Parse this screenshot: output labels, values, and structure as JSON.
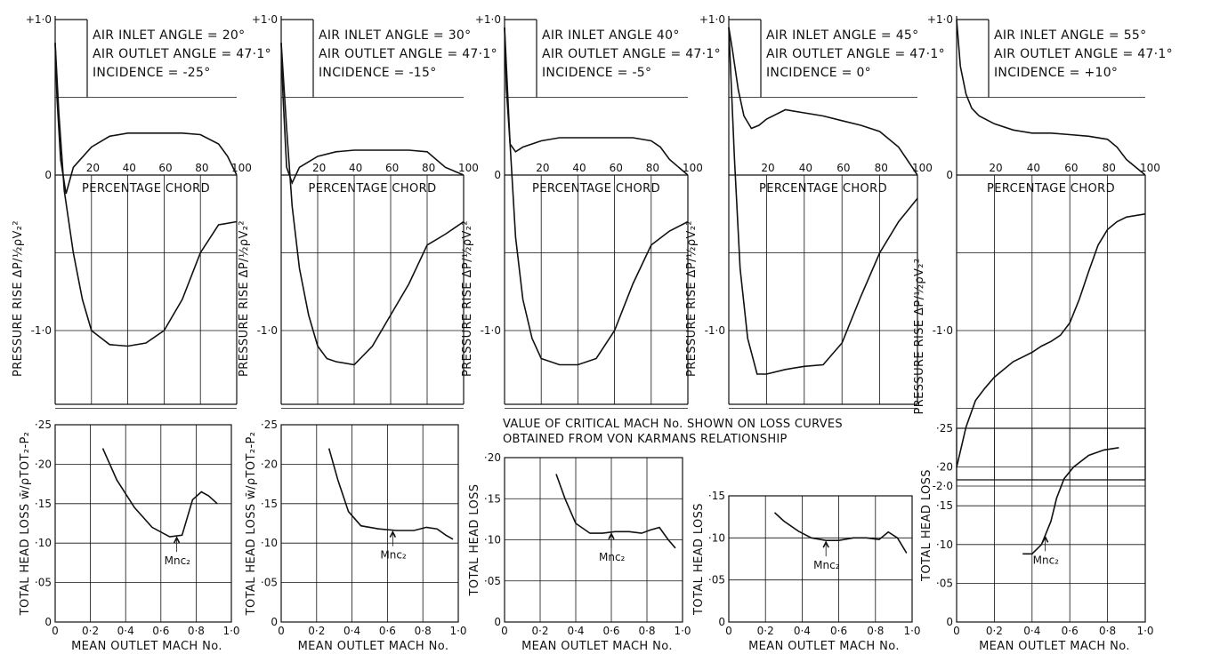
{
  "note_lines": [
    "VALUE OF CRITICAL MACH No. SHOWN ON LOSS CURVES",
    "OBTAINED FROM VON KARMANS RELATIONSHIP"
  ],
  "chart_data": [
    {
      "type": "line",
      "annotation": [
        "AIR INLET ANGLE = 20°",
        "AIR OUTLET ANGLE = 47·1°",
        "INCIDENCE = -25°"
      ],
      "pressure": {
        "xlabel": "PERCENTAGE CHORD",
        "ylabel": "PRESSURE RISE ΔP/½ρV₂²",
        "xticks": [
          "20",
          "40",
          "60",
          "80",
          "100"
        ],
        "yticks": [
          "+1·0",
          "0",
          "-1·0"
        ],
        "xlim": [
          0,
          100
        ],
        "ylim": [
          -1.5,
          1.0
        ],
        "series": [
          {
            "x": [
              0,
              1,
              3,
              6,
              10,
              20,
              30,
              40,
              50,
              60,
              70,
              80,
              90,
              95,
              100
            ],
            "y": [
              0.85,
              0.5,
              0.1,
              -0.12,
              0.05,
              0.18,
              0.25,
              0.27,
              0.27,
              0.27,
              0.27,
              0.26,
              0.2,
              0.12,
              0.0
            ]
          },
          {
            "x": [
              0,
              2,
              5,
              10,
              15,
              20,
              30,
              40,
              50,
              60,
              70,
              80,
              90,
              100
            ],
            "y": [
              0.85,
              0.4,
              -0.1,
              -0.5,
              -0.8,
              -1.0,
              -1.09,
              -1.1,
              -1.08,
              -1.0,
              -0.8,
              -0.5,
              -0.32,
              -0.3
            ]
          }
        ]
      },
      "loss": {
        "xlabel": "MEAN OUTLET MACH No.",
        "ylabel": "TOTAL HEAD LOSS w̄/ρTOT₂-P₂",
        "xticks": [
          "0",
          "0·2",
          "0·4",
          "0·6",
          "0·8",
          "1·0"
        ],
        "yticks": [
          "0",
          "·05",
          "·10",
          "·15",
          "·20",
          "·25"
        ],
        "xlim": [
          0,
          1.0
        ],
        "ylim": [
          0,
          0.25
        ],
        "mcrit_label": "Mnc₂",
        "mcrit_x": 0.69,
        "series": [
          {
            "x": [
              0.27,
              0.35,
              0.45,
              0.55,
              0.65,
              0.72,
              0.78,
              0.83,
              0.87,
              0.92
            ],
            "y": [
              0.22,
              0.18,
              0.145,
              0.12,
              0.108,
              0.11,
              0.155,
              0.165,
              0.16,
              0.15
            ]
          }
        ]
      }
    },
    {
      "type": "line",
      "annotation": [
        "AIR INLET ANGLE = 30°",
        "AIR OUTLET ANGLE = 47·1°",
        "INCIDENCE = -15°"
      ],
      "pressure": {
        "xlabel": "PERCENTAGE CHORD",
        "ylabel": "PRESSURE RISE ΔP/½ρV₂²",
        "xticks": [
          "20",
          "40",
          "60",
          "80",
          "100"
        ],
        "yticks": [
          "+1·0",
          "-1·0"
        ],
        "xlim": [
          0,
          100
        ],
        "ylim": [
          -1.5,
          1.0
        ],
        "series": [
          {
            "x": [
              0,
              1,
              3,
              6,
              10,
              20,
              30,
              40,
              50,
              60,
              70,
              80,
              90,
              100
            ],
            "y": [
              0.85,
              0.5,
              0.05,
              -0.05,
              0.05,
              0.12,
              0.15,
              0.16,
              0.16,
              0.16,
              0.16,
              0.15,
              0.05,
              0.0
            ]
          },
          {
            "x": [
              0,
              3,
              6,
              10,
              15,
              20,
              25,
              30,
              40,
              50,
              60,
              70,
              80,
              90,
              100
            ],
            "y": [
              0.85,
              0.3,
              -0.2,
              -0.6,
              -0.9,
              -1.1,
              -1.18,
              -1.2,
              -1.22,
              -1.1,
              -0.9,
              -0.7,
              -0.45,
              -0.38,
              -0.3
            ]
          }
        ]
      },
      "loss": {
        "xlabel": "MEAN OUTLET MACH No.",
        "ylabel": "TOTAL HEAD LOSS w̄/ρTOT₂-P₂",
        "xticks": [
          "0",
          "0·2",
          "0·4",
          "0·6",
          "0·8",
          "1·0"
        ],
        "yticks": [
          "0",
          "·05",
          "·10",
          "·15",
          "·20",
          "·25"
        ],
        "xlim": [
          0,
          1.0
        ],
        "ylim": [
          0,
          0.25
        ],
        "mcrit_label": "Mnc₂",
        "mcrit_x": 0.63,
        "series": [
          {
            "x": [
              0.27,
              0.32,
              0.38,
              0.45,
              0.55,
              0.65,
              0.75,
              0.82,
              0.88,
              0.93,
              0.97
            ],
            "y": [
              0.22,
              0.18,
              0.14,
              0.122,
              0.118,
              0.116,
              0.116,
              0.12,
              0.118,
              0.11,
              0.105
            ]
          }
        ]
      }
    },
    {
      "type": "line",
      "annotation": [
        "AIR INLET ANGLE 40°",
        "AIR OUTLET ANGLE = 47·1°",
        "INCIDENCE = -5°"
      ],
      "pressure": {
        "xlabel": "PERCENTAGE CHORD",
        "ylabel": "PRESSURE RISE ΔP/½ρV₂²",
        "xticks": [
          "20",
          "40",
          "60",
          "80",
          "100"
        ],
        "yticks": [
          "+1·0",
          "0",
          "-1·0"
        ],
        "xlim": [
          0,
          100
        ],
        "ylim": [
          -1.5,
          1.0
        ],
        "series": [
          {
            "x": [
              0,
              1,
              3,
              6,
              10,
              20,
              30,
              40,
              50,
              60,
              70,
              80,
              85,
              90,
              100
            ],
            "y": [
              0.95,
              0.55,
              0.2,
              0.15,
              0.18,
              0.22,
              0.24,
              0.24,
              0.24,
              0.24,
              0.24,
              0.22,
              0.18,
              0.1,
              0.0
            ]
          },
          {
            "x": [
              0,
              3,
              6,
              10,
              15,
              20,
              30,
              40,
              50,
              60,
              70,
              80,
              90,
              100
            ],
            "y": [
              0.95,
              0.2,
              -0.4,
              -0.8,
              -1.05,
              -1.18,
              -1.22,
              -1.22,
              -1.18,
              -1.0,
              -0.7,
              -0.45,
              -0.36,
              -0.3
            ]
          }
        ]
      },
      "loss": {
        "xlabel": "MEAN OUTLET MACH No.",
        "ylabel": "TOTAL HEAD LOSS",
        "xticks": [
          "0",
          "0·2",
          "0·4",
          "0·6",
          "0·8",
          "1·0"
        ],
        "yticks": [
          "0",
          "·05",
          "·10",
          "·15",
          "·20"
        ],
        "xlim": [
          0,
          1.0
        ],
        "ylim": [
          0,
          0.2
        ],
        "mcrit_label": "Mnc₂",
        "mcrit_x": 0.6,
        "series": [
          {
            "x": [
              0.29,
              0.34,
              0.4,
              0.48,
              0.55,
              0.62,
              0.7,
              0.77,
              0.82,
              0.87,
              0.92,
              0.96
            ],
            "y": [
              0.18,
              0.15,
              0.12,
              0.108,
              0.108,
              0.11,
              0.11,
              0.108,
              0.112,
              0.115,
              0.1,
              0.09
            ]
          }
        ]
      }
    },
    {
      "type": "line",
      "annotation": [
        "AIR INLET ANGLE = 45°",
        "AIR OUTLET ANGLE = 47·1°",
        "INCIDENCE = 0°"
      ],
      "pressure": {
        "xlabel": "PERCENTAGE CHORD",
        "ylabel": "PRESSURE RISE ΔP/½ρV₂²",
        "xticks": [
          "20",
          "40",
          "60",
          "80",
          "100"
        ],
        "yticks": [
          "+1·0",
          "-1·0"
        ],
        "xlim": [
          0,
          100
        ],
        "ylim": [
          -1.5,
          1.0
        ],
        "series": [
          {
            "x": [
              0,
              2,
              5,
              8,
              12,
              16,
              20,
              30,
              40,
              50,
              60,
              70,
              80,
              90,
              100
            ],
            "y": [
              0.95,
              0.8,
              0.55,
              0.38,
              0.3,
              0.32,
              0.36,
              0.42,
              0.4,
              0.38,
              0.35,
              0.32,
              0.28,
              0.18,
              0.0
            ]
          },
          {
            "x": [
              0,
              3,
              6,
              10,
              15,
              20,
              30,
              40,
              50,
              60,
              70,
              80,
              90,
              100
            ],
            "y": [
              0.95,
              0.1,
              -0.6,
              -1.05,
              -1.28,
              -1.28,
              -1.25,
              -1.23,
              -1.22,
              -1.08,
              -0.78,
              -0.5,
              -0.3,
              -0.15
            ]
          }
        ]
      },
      "loss": {
        "xlabel": "MEAN OUTLET MACH No.",
        "ylabel": "TOTAL HEAD LOSS",
        "xticks": [
          "0",
          "0·2",
          "0·4",
          "0·6",
          "0·8",
          "1·0"
        ],
        "yticks": [
          "0",
          "·05",
          "·10",
          "·15"
        ],
        "xlim": [
          0,
          1.0
        ],
        "ylim": [
          0,
          0.15
        ],
        "mcrit_label": "Mnc₂",
        "mcrit_x": 0.53,
        "series": [
          {
            "x": [
              0.25,
              0.3,
              0.38,
              0.45,
              0.53,
              0.6,
              0.68,
              0.75,
              0.82,
              0.87,
              0.92,
              0.97
            ],
            "y": [
              0.13,
              0.12,
              0.108,
              0.1,
              0.097,
              0.097,
              0.1,
              0.1,
              0.098,
              0.107,
              0.1,
              0.082
            ]
          }
        ]
      }
    },
    {
      "type": "line",
      "annotation": [
        "AIR INLET ANGLE = 55°",
        "AIR OUTLET ANGLE = 47·1°",
        "INCIDENCE = +10°"
      ],
      "pressure": {
        "xlabel": "PERCENTAGE CHORD",
        "ylabel": "PRESSURE RISE ΔP/½ρV₂²",
        "xticks": [
          "20",
          "40",
          "60",
          "80",
          "100"
        ],
        "yticks": [
          "+1·0",
          "0",
          "-1·0",
          "-2·0"
        ],
        "xlim": [
          0,
          100
        ],
        "ylim": [
          -2.0,
          1.0
        ],
        "series": [
          {
            "x": [
              0,
              2,
              5,
              8,
              12,
              20,
              30,
              40,
              50,
              60,
              70,
              80,
              85,
              90,
              100
            ],
            "y": [
              1.0,
              0.7,
              0.52,
              0.43,
              0.38,
              0.33,
              0.29,
              0.27,
              0.27,
              0.26,
              0.25,
              0.23,
              0.18,
              0.1,
              0.0
            ]
          },
          {
            "x": [
              0,
              5,
              10,
              15,
              20,
              25,
              30,
              35,
              40,
              45,
              50,
              55,
              60,
              65,
              70,
              75,
              80,
              85,
              90,
              100
            ],
            "y": [
              -1.88,
              -1.62,
              -1.45,
              -1.37,
              -1.3,
              -1.25,
              -1.2,
              -1.17,
              -1.14,
              -1.1,
              -1.07,
              -1.03,
              -0.95,
              -0.8,
              -0.62,
              -0.45,
              -0.35,
              -0.3,
              -0.27,
              -0.25
            ]
          }
        ]
      },
      "loss": {
        "xlabel": "MEAN OUTLET MACH No.",
        "ylabel": "TOTAL HEAD LOSS",
        "xticks": [
          "0",
          "0·2",
          "0·4",
          "0·6",
          "0·8",
          "1·0"
        ],
        "yticks": [
          "0",
          "·05",
          "·10",
          "·15",
          "·20",
          "·25"
        ],
        "xlim": [
          0,
          1.0
        ],
        "ylim": [
          0,
          0.25
        ],
        "mcrit_label": "Mnc₂",
        "mcrit_x": 0.47,
        "series": [
          {
            "x": [
              0.35,
              0.4,
              0.45,
              0.5,
              0.53,
              0.57,
              0.62,
              0.7,
              0.78,
              0.86
            ],
            "y": [
              0.088,
              0.088,
              0.1,
              0.13,
              0.16,
              0.185,
              0.2,
              0.215,
              0.222,
              0.225
            ]
          }
        ]
      }
    }
  ]
}
